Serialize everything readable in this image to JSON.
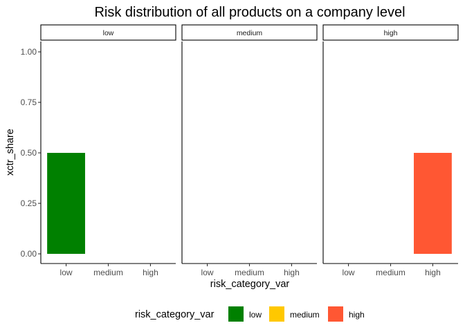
{
  "chart_data": {
    "type": "bar",
    "title": "Risk distribution of all products on a company level",
    "xlabel": "risk_category_var",
    "ylabel": "xctr_share",
    "ylim": [
      0,
      1
    ],
    "y_ticks": [
      "0.00",
      "0.25",
      "0.50",
      "0.75",
      "1.00"
    ],
    "y_tick_values": [
      0,
      0.25,
      0.5,
      0.75,
      1.0
    ],
    "categories": [
      "low",
      "medium",
      "high"
    ],
    "facets": [
      {
        "label": "low",
        "values": [
          0.5,
          0,
          0
        ]
      },
      {
        "label": "medium",
        "values": [
          0,
          0,
          0
        ]
      },
      {
        "label": "high",
        "values": [
          0,
          0,
          0.5
        ]
      }
    ],
    "colors": {
      "low": "#008000",
      "medium": "#FFC800",
      "high": "#FF5733"
    },
    "legend": {
      "title": "risk_category_var",
      "items": [
        "low",
        "medium",
        "high"
      ],
      "position": "bottom"
    },
    "grid": false
  }
}
